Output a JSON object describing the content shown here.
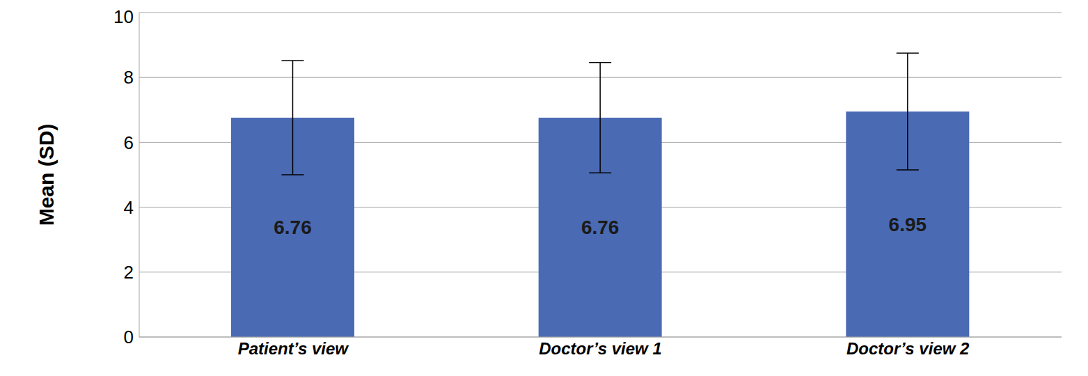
{
  "chart_data": {
    "type": "bar",
    "y_label": "Mean (SD)",
    "categories": [
      "Patient’s view",
      "Doctor’s view 1",
      "Doctor’s view 2"
    ],
    "values": [
      6.76,
      6.76,
      6.95
    ],
    "errors": [
      1.76,
      1.7,
      1.8
    ],
    "color": "#4a6ab4",
    "ylim": [
      0,
      10
    ],
    "yticks": [
      0,
      2,
      4,
      6,
      8,
      10
    ],
    "grid": true,
    "data_labels": true
  }
}
